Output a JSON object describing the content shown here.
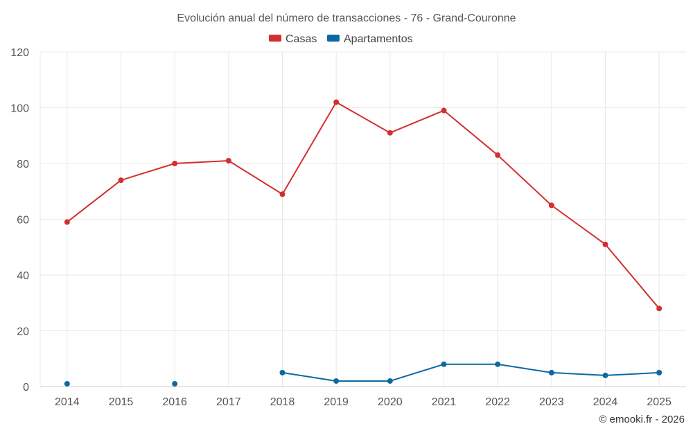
{
  "chart_data": {
    "type": "line",
    "title": "Evolución anual del número de transacciones - 76 - Grand-Couronne",
    "categories": [
      "2014",
      "2015",
      "2016",
      "2017",
      "2018",
      "2019",
      "2020",
      "2021",
      "2022",
      "2023",
      "2024",
      "2025"
    ],
    "series": [
      {
        "name": "Casas",
        "color": "#d32f2f",
        "values": [
          59,
          74,
          80,
          81,
          69,
          102,
          91,
          99,
          83,
          65,
          51,
          28
        ]
      },
      {
        "name": "Apartamentos",
        "color": "#0b6aa2",
        "values": [
          1,
          null,
          1,
          null,
          5,
          2,
          2,
          8,
          8,
          5,
          4,
          5
        ]
      }
    ],
    "ylim": [
      0,
      120
    ],
    "yticks": [
      0,
      20,
      40,
      60,
      80,
      100,
      120
    ],
    "xlabel": "",
    "ylabel": "",
    "grid": true,
    "legend": "top-center"
  },
  "credit": "© emooki.fr - 2026"
}
